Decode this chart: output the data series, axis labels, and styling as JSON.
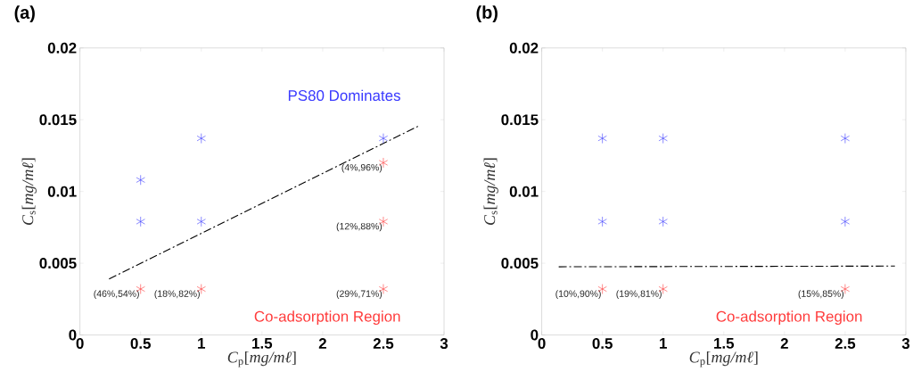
{
  "chart_data": [
    {
      "type": "scatter",
      "title": "(a)",
      "xlabel": "*C*$_{p}$[*mg/mℓ*]",
      "ylabel": "*C*$_{s}$[*mg/mℓ*]",
      "xlim": [
        0,
        3
      ],
      "ylim": [
        0,
        0.02
      ],
      "xticks": [
        0,
        0.5,
        1,
        1.5,
        2,
        2.5,
        3
      ],
      "yticks": [
        0,
        0.005,
        0.01,
        0.015,
        0.02
      ],
      "series": [
        {
          "color": "#3b3bff",
          "marker": "cross",
          "x": [
            0.5,
            0.5,
            1,
            1,
            2.5
          ],
          "values": [
            0.0108,
            0.0079,
            0.0137,
            0.0079,
            0.0137
          ]
        },
        {
          "color": "#ff3b3b",
          "marker": "cross",
          "x": [
            0.5,
            1,
            2.5,
            2.5,
            2.5
          ],
          "values": [
            0.0032,
            0.0032,
            0.0032,
            0.0079,
            0.012
          ]
        },
        {
          "type": "line",
          "color": "#000000",
          "line_style": "dashed",
          "x": [
            0.24,
            2.8
          ],
          "values": [
            0.0039,
            0.0146
          ]
        }
      ],
      "annotations": [
        "PS80 Dominates",
        "Co-adsorption Region",
        {
          "text": "(46%,54%)",
          "x": 0.5,
          "y": 0.0032
        },
        {
          "text": "(18%,82%)",
          "x": 1,
          "y": 0.0032
        },
        {
          "text": "(29%,71%)",
          "x": 2.5,
          "y": 0.0032
        },
        {
          "text": "(12%,88%)",
          "x": 2.5,
          "y": 0.0079
        },
        {
          "text": "(4%,96%)",
          "x": 2.5,
          "y": 0.012
        }
      ]
    },
    {
      "type": "scatter",
      "title": "(b)",
      "xlabel": "*C*$_{p}$[*mg/mℓ*]",
      "ylabel": "*C*$_{s}$[*mg/mℓ*]",
      "xlim": [
        0,
        3
      ],
      "ylim": [
        0,
        0.02
      ],
      "xticks": [
        0,
        0.5,
        1,
        1.5,
        2,
        2.5,
        3
      ],
      "yticks": [
        0,
        0.005,
        0.01,
        0.015,
        0.02
      ],
      "series": [
        {
          "color": "#3b3bff",
          "marker": "cross",
          "x": [
            0.5,
            1,
            2.5,
            0.5,
            1,
            2.5
          ],
          "values": [
            0.0137,
            0.0137,
            0.0137,
            0.0079,
            0.0079,
            0.0079
          ]
        },
        {
          "color": "#ff3b3b",
          "marker": "cross",
          "x": [
            0.5,
            1,
            2.5
          ],
          "values": [
            0.0032,
            0.0032,
            0.0032
          ]
        },
        {
          "type": "line",
          "color": "#000000",
          "line_style": "dashed",
          "x": [
            0.14,
            2.91
          ],
          "values": [
            0.00475,
            0.0048
          ]
        }
      ],
      "annotations": [
        "Co-adsorption Region",
        {
          "text": "(10%,90%)",
          "x": 0.5,
          "y": 0.0032
        },
        {
          "text": "(19%,81%)",
          "x": 1,
          "y": 0.0032
        },
        {
          "text": "(15%,85%)",
          "x": 2.5,
          "y": 0.0032
        }
      ]
    }
  ]
}
